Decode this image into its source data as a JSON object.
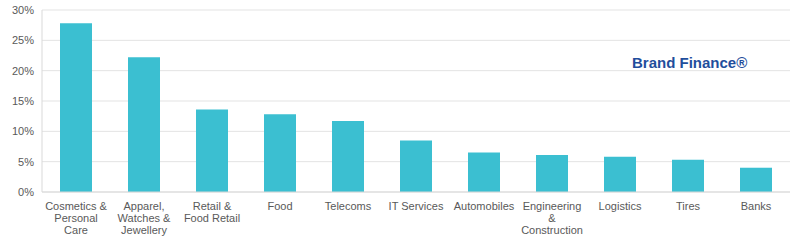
{
  "chart_data": {
    "type": "bar",
    "categories": [
      "Cosmetics & Personal Care",
      "Apparel, Watches & Jewellery",
      "Retail & Food Retail",
      "Food",
      "Telecoms",
      "IT Services",
      "Automobiles",
      "Engineering & Construction",
      "Logistics",
      "Tires",
      "Banks"
    ],
    "values": [
      27.8,
      22.2,
      13.6,
      12.8,
      11.7,
      8.5,
      6.5,
      6.1,
      5.8,
      5.3,
      4.0
    ],
    "color": "#3bbfd1",
    "ylim": [
      0,
      30
    ],
    "yticks": [
      {
        "value": 0,
        "label": "0%"
      },
      {
        "value": 5,
        "label": "5%"
      },
      {
        "value": 10,
        "label": "10%"
      },
      {
        "value": 15,
        "label": "15%"
      },
      {
        "value": 20,
        "label": "20%"
      },
      {
        "value": 25,
        "label": "25%"
      },
      {
        "value": 30,
        "label": "30%"
      }
    ],
    "grid": true,
    "annotations": [
      "Brand Finance®"
    ]
  }
}
